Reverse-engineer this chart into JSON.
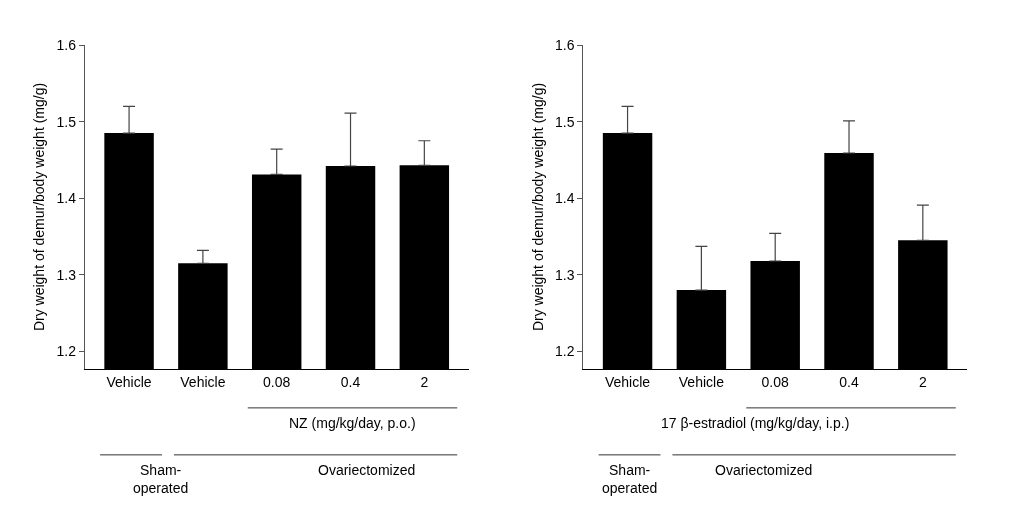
{
  "chart_data": [
    {
      "type": "bar",
      "ylabel": "Dry weight of demur/body weight (mg/g)",
      "categories": [
        "Vehicle",
        "Vehicle",
        "0.08",
        "0.4",
        "2"
      ],
      "values": [
        1.485,
        1.315,
        1.431,
        1.442,
        1.443
      ],
      "errors": [
        [
          1.485,
          1.52
        ],
        [
          1.315,
          1.332
        ],
        [
          1.431,
          1.464
        ],
        [
          1.442,
          1.511
        ],
        [
          1.443,
          1.475
        ]
      ],
      "color": "#000000",
      "ylim": [
        1.177,
        1.6
      ],
      "yticks": [
        1.2,
        1.3,
        1.4,
        1.5,
        1.6
      ],
      "annotations": [
        "NZ (mg/kg/day, p.o.)",
        "Sham-\noperated",
        "Ovariectomized"
      ]
    },
    {
      "type": "bar",
      "ylabel": "Dry weight of demur/body weight (mg/g)",
      "categories": [
        "Vehicle",
        "Vehicle",
        "0.08",
        "0.4",
        "2"
      ],
      "values": [
        1.485,
        1.28,
        1.318,
        1.459,
        1.345
      ],
      "errors": [
        [
          1.485,
          1.52
        ],
        [
          1.28,
          1.337
        ],
        [
          1.318,
          1.354
        ],
        [
          1.459,
          1.501
        ],
        [
          1.345,
          1.391
        ]
      ],
      "color": "#000000",
      "ylim": [
        1.177,
        1.6
      ],
      "yticks": [
        1.2,
        1.3,
        1.4,
        1.5,
        1.6
      ],
      "annotations": [
        "17 β-estradiol (mg/kg/day, i.p.)",
        "Sham-\noperated",
        "Ovariectomized"
      ]
    }
  ]
}
